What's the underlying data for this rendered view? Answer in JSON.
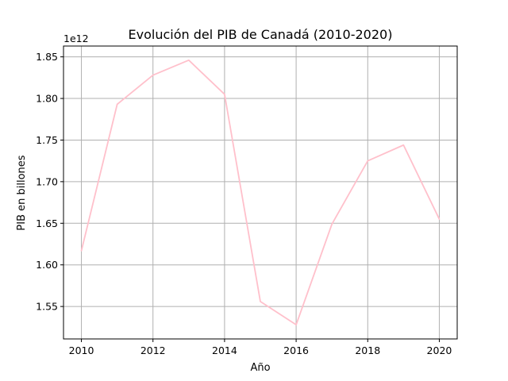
{
  "chart_data": {
    "type": "line",
    "title": "Evolución del PIB de Canadá (2010-2020)",
    "xlabel": "Año",
    "ylabel": "PIB en billones",
    "y_offset_label": "1e12",
    "x": [
      2010,
      2011,
      2012,
      2013,
      2014,
      2015,
      2016,
      2017,
      2018,
      2019,
      2020
    ],
    "series": [
      {
        "values": [
          1617000000000.0,
          1793000000000.0,
          1828000000000.0,
          1846000000000.0,
          1805000000000.0,
          1556000000000.0,
          1528000000000.0,
          1649000000000.0,
          1725000000000.0,
          1744000000000.0,
          1655000000000.0
        ],
        "color": "#ffc0cb"
      }
    ],
    "xlim": [
      2009.5,
      2020.5
    ],
    "ylim": [
      1511000000000.0,
      1863000000000.0
    ],
    "xticks": [
      2010,
      2012,
      2014,
      2016,
      2018,
      2020
    ],
    "yticks": [
      1550000000000.0,
      1600000000000.0,
      1650000000000.0,
      1700000000000.0,
      1750000000000.0,
      1800000000000.0,
      1850000000000.0
    ],
    "ytick_labels": [
      "1.55",
      "1.60",
      "1.65",
      "1.70",
      "1.75",
      "1.80",
      "1.85"
    ],
    "xtick_labels": [
      "2010",
      "2012",
      "2014",
      "2016",
      "2018",
      "2020"
    ],
    "grid": true,
    "grid_color": "#b0b0b0",
    "legend": false
  }
}
